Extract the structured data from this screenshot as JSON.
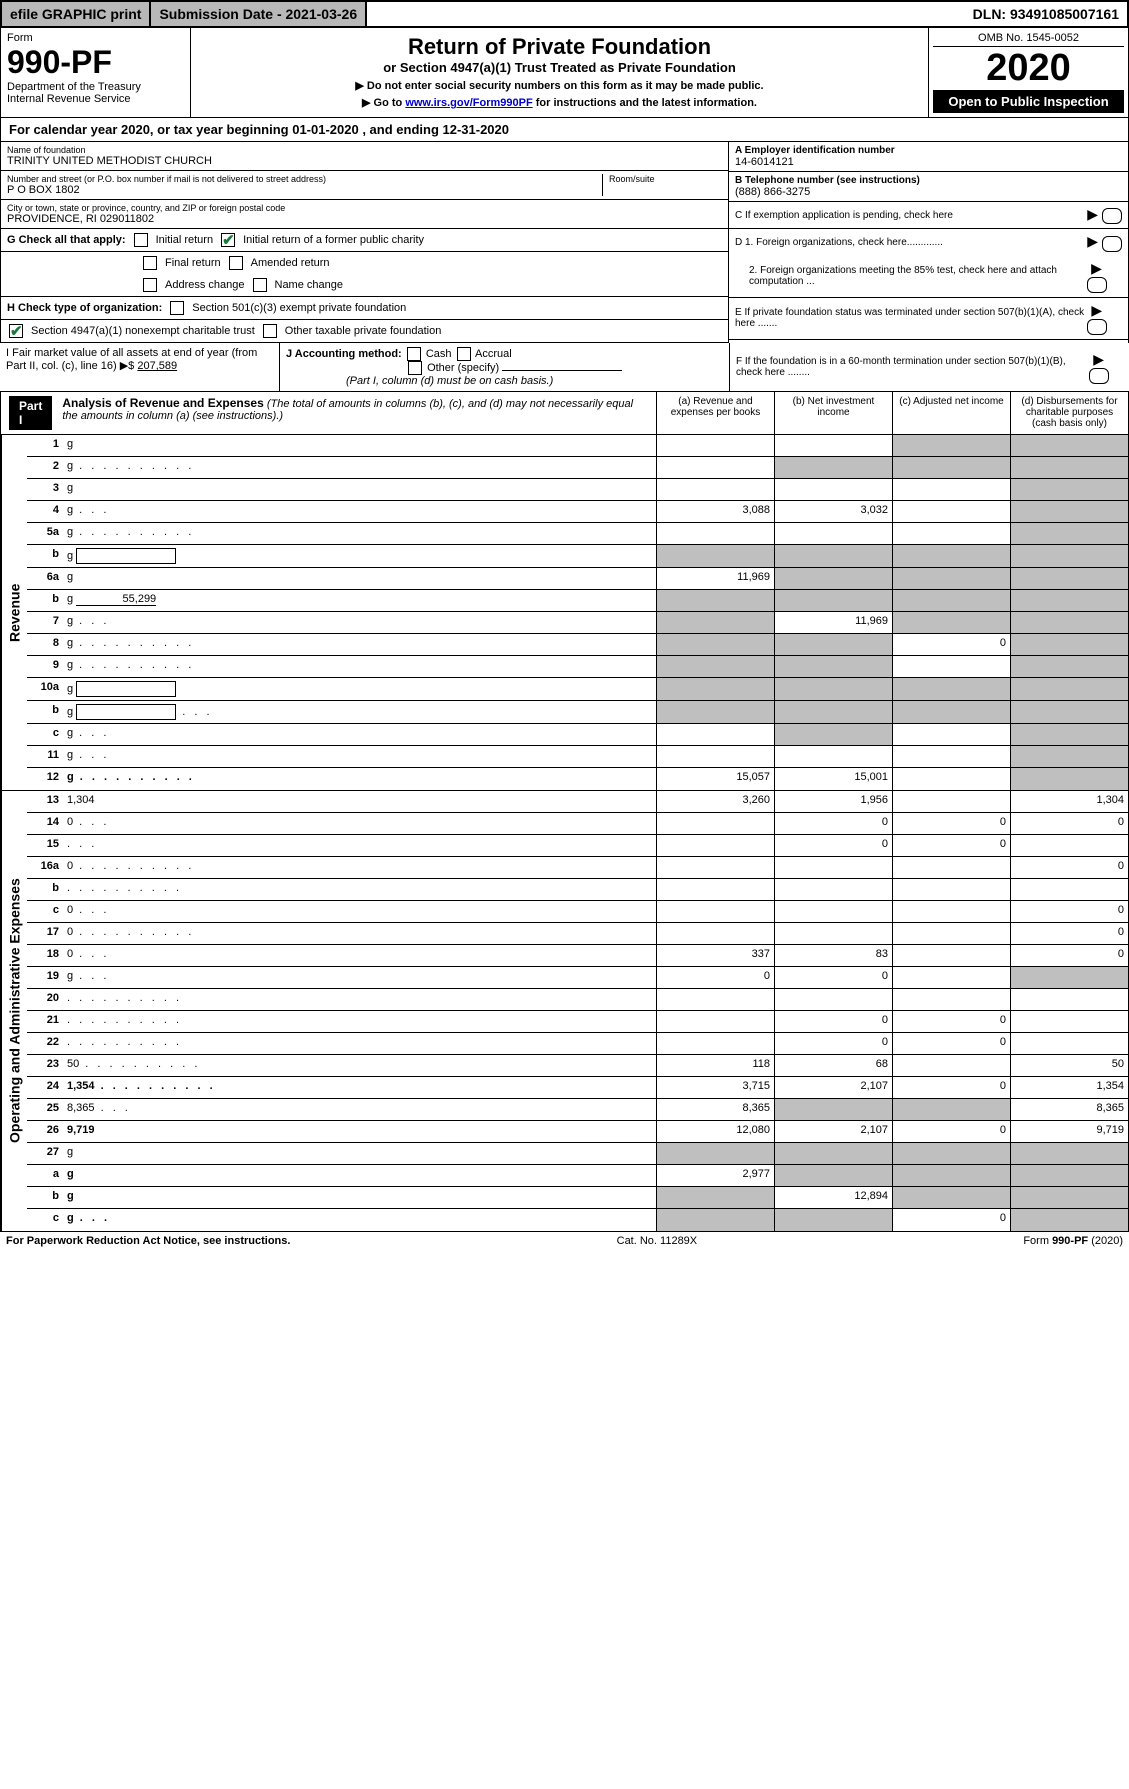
{
  "top": {
    "efile": "efile GRAPHIC print",
    "submission": "Submission Date - 2021-03-26",
    "dln": "DLN: 93491085007161"
  },
  "header": {
    "form_label": "Form",
    "form_num": "990-PF",
    "dept1": "Department of the Treasury",
    "dept2": "Internal Revenue Service",
    "title": "Return of Private Foundation",
    "subtitle": "or Section 4947(a)(1) Trust Treated as Private Foundation",
    "note1": "▶ Do not enter social security numbers on this form as it may be made public.",
    "note2": "▶ Go to ",
    "link": "www.irs.gov/Form990PF",
    "note3": " for instructions and the latest information.",
    "omb": "OMB No. 1545-0052",
    "year": "2020",
    "open": "Open to Public Inspection"
  },
  "calyear": "For calendar year 2020, or tax year beginning 01-01-2020               , and ending 12-31-2020",
  "info": {
    "name_lbl": "Name of foundation",
    "name": "TRINITY UNITED METHODIST CHURCH",
    "addr_lbl": "Number and street (or P.O. box number if mail is not delivered to street address)",
    "addr": "P O BOX 1802",
    "room_lbl": "Room/suite",
    "city_lbl": "City or town, state or province, country, and ZIP or foreign postal code",
    "city": "PROVIDENCE, RI  029011802",
    "a_lbl": "A Employer identification number",
    "a_val": "14-6014121",
    "b_lbl": "B Telephone number (see instructions)",
    "b_val": "(888) 866-3275",
    "c_lbl": "C If exemption application is pending, check here",
    "d1": "D 1. Foreign organizations, check here.............",
    "d2": "2. Foreign organizations meeting the 85% test, check here and attach computation ...",
    "e_lbl": "E  If private foundation status was terminated under section 507(b)(1)(A), check here .......",
    "f_lbl": "F  If the foundation is in a 60-month termination under section 507(b)(1)(B), check here ........"
  },
  "g": {
    "label": "G Check all that apply:",
    "opts": [
      "Initial return",
      "Initial return of a former public charity",
      "Final return",
      "Amended return",
      "Address change",
      "Name change"
    ]
  },
  "h": {
    "label": "H Check type of organization:",
    "opt1": "Section 501(c)(3) exempt private foundation",
    "opt2": "Section 4947(a)(1) nonexempt charitable trust",
    "opt3": "Other taxable private foundation"
  },
  "i": {
    "label": "I Fair market value of all assets at end of year (from Part II, col. (c), line 16) ▶$",
    "val": "207,589"
  },
  "j": {
    "label": "J Accounting method:",
    "cash": "Cash",
    "accrual": "Accrual",
    "other": "Other (specify)",
    "note": "(Part I, column (d) must be on cash basis.)"
  },
  "part1": {
    "label": "Part I",
    "title": "Analysis of Revenue and Expenses",
    "note": "(The total of amounts in columns (b), (c), and (d) may not necessarily equal the amounts in column (a) (see instructions).)",
    "cols": {
      "a": "(a)    Revenue and expenses per books",
      "b": "(b)   Net investment income",
      "c": "(c)   Adjusted net income",
      "d": "(d)   Disbursements for charitable purposes (cash basis only)"
    }
  },
  "revenue_label": "Revenue",
  "expense_label": "Operating and Administrative Expenses",
  "rows": [
    {
      "n": "1",
      "d": "g",
      "a": "",
      "b": "",
      "c": "g"
    },
    {
      "n": "2",
      "d": "g",
      "dots": true,
      "a": "",
      "b": "g",
      "c": "g"
    },
    {
      "n": "3",
      "d": "g",
      "a": "",
      "b": "",
      "c": ""
    },
    {
      "n": "4",
      "d": "g",
      "dots": "s",
      "a": "3,088",
      "b": "3,032",
      "c": ""
    },
    {
      "n": "5a",
      "d": "g",
      "dots": true,
      "a": "",
      "b": "",
      "c": ""
    },
    {
      "n": "b",
      "d": "g",
      "box": true,
      "a": "g",
      "b": "g",
      "c": "g"
    },
    {
      "n": "6a",
      "d": "g",
      "a": "11,969",
      "b": "g",
      "c": "g"
    },
    {
      "n": "b",
      "d": "g",
      "uval": "55,299",
      "a": "g",
      "b": "g",
      "c": "g"
    },
    {
      "n": "7",
      "d": "g",
      "dots": "s",
      "a": "g",
      "b": "11,969",
      "c": "g"
    },
    {
      "n": "8",
      "d": "g",
      "dots": true,
      "a": "g",
      "b": "g",
      "c": "0"
    },
    {
      "n": "9",
      "d": "g",
      "dots": true,
      "a": "g",
      "b": "g",
      "c": ""
    },
    {
      "n": "10a",
      "d": "g",
      "box": true,
      "a": "g",
      "b": "g",
      "c": "g"
    },
    {
      "n": "b",
      "d": "g",
      "dots": "s",
      "box": true,
      "a": "g",
      "b": "g",
      "c": "g"
    },
    {
      "n": "c",
      "d": "g",
      "dots": "s",
      "a": "",
      "b": "g",
      "c": ""
    },
    {
      "n": "11",
      "d": "g",
      "dots": "s",
      "a": "",
      "b": "",
      "c": ""
    },
    {
      "n": "12",
      "d": "g",
      "dots": true,
      "bold": true,
      "a": "15,057",
      "b": "15,001",
      "c": ""
    }
  ],
  "exp_rows": [
    {
      "n": "13",
      "d": "1,304",
      "a": "3,260",
      "b": "1,956",
      "c": ""
    },
    {
      "n": "14",
      "d": "0",
      "dots": "s",
      "a": "",
      "b": "0",
      "c": "0"
    },
    {
      "n": "15",
      "d": "",
      "dots": "s",
      "a": "",
      "b": "0",
      "c": "0"
    },
    {
      "n": "16a",
      "d": "0",
      "dots": true,
      "a": "",
      "b": "",
      "c": ""
    },
    {
      "n": "b",
      "d": "",
      "dots": true,
      "a": "",
      "b": "",
      "c": ""
    },
    {
      "n": "c",
      "d": "0",
      "dots": "s",
      "a": "",
      "b": "",
      "c": ""
    },
    {
      "n": "17",
      "d": "0",
      "dots": true,
      "a": "",
      "b": "",
      "c": ""
    },
    {
      "n": "18",
      "d": "0",
      "dots": "s",
      "a": "337",
      "b": "83",
      "c": ""
    },
    {
      "n": "19",
      "d": "g",
      "dots": "s",
      "a": "0",
      "b": "0",
      "c": ""
    },
    {
      "n": "20",
      "d": "",
      "dots": true,
      "a": "",
      "b": "",
      "c": ""
    },
    {
      "n": "21",
      "d": "",
      "dots": true,
      "a": "",
      "b": "0",
      "c": "0"
    },
    {
      "n": "22",
      "d": "",
      "dots": true,
      "a": "",
      "b": "0",
      "c": "0"
    },
    {
      "n": "23",
      "d": "50",
      "dots": true,
      "a": "118",
      "b": "68",
      "c": ""
    },
    {
      "n": "24",
      "d": "1,354",
      "dots": true,
      "bold": true,
      "a": "3,715",
      "b": "2,107",
      "c": "0"
    },
    {
      "n": "25",
      "d": "8,365",
      "dots": "s",
      "a": "8,365",
      "b": "g",
      "c": "g"
    },
    {
      "n": "26",
      "d": "9,719",
      "bold": true,
      "a": "12,080",
      "b": "2,107",
      "c": "0"
    },
    {
      "n": "27",
      "d": "g",
      "a": "g",
      "b": "g",
      "c": "g"
    },
    {
      "n": "a",
      "d": "g",
      "bold": true,
      "a": "2,977",
      "b": "g",
      "c": "g"
    },
    {
      "n": "b",
      "d": "g",
      "bold": true,
      "a": "g",
      "b": "12,894",
      "c": "g"
    },
    {
      "n": "c",
      "d": "g",
      "dots": "s",
      "bold": true,
      "a": "g",
      "b": "g",
      "c": "0"
    }
  ],
  "footer": {
    "left": "For Paperwork Reduction Act Notice, see instructions.",
    "mid": "Cat. No. 11289X",
    "right": "Form 990-PF (2020)"
  }
}
